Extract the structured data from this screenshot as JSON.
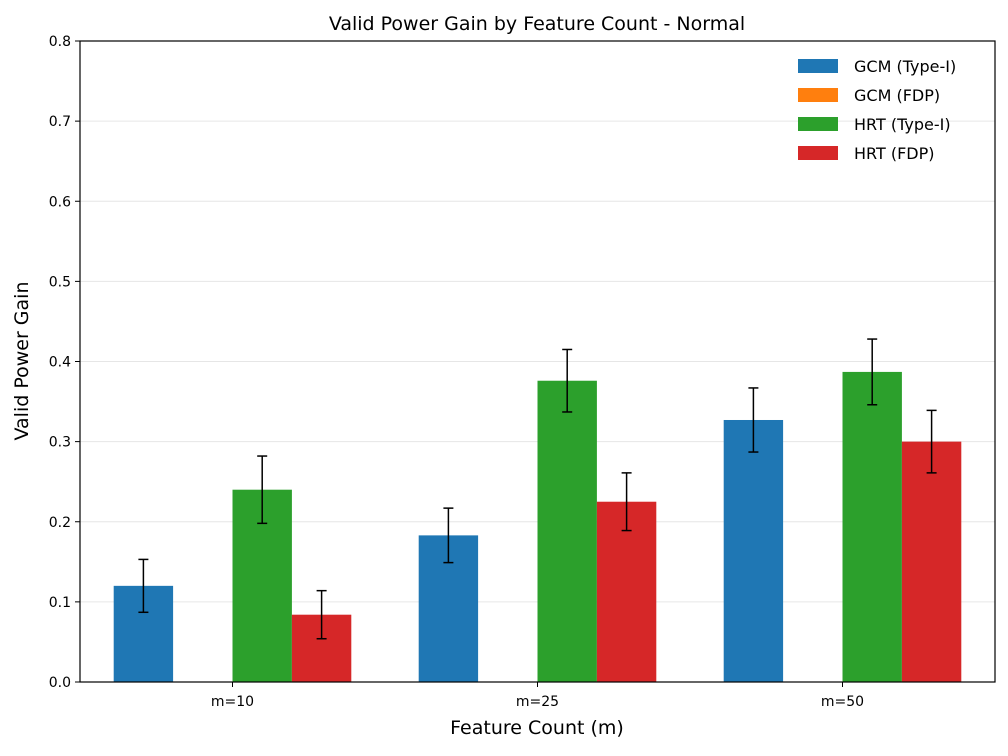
{
  "chart_data": {
    "type": "bar",
    "title": "Valid Power Gain by Feature Count - Normal",
    "xlabel": "Feature Count (m)",
    "ylabel": "Valid Power Gain",
    "ylim": [
      0,
      0.8
    ],
    "yticks": [
      "0.0",
      "0.1",
      "0.2",
      "0.3",
      "0.4",
      "0.5",
      "0.6",
      "0.7",
      "0.8"
    ],
    "grid": "horizontal",
    "legend_position": "top-right",
    "categories": [
      "m=10",
      "m=25",
      "m=50"
    ],
    "series": [
      {
        "name": "GCM (Type-I)",
        "color": "#1f77b4",
        "values": [
          0.12,
          0.183,
          0.327
        ],
        "errors": [
          0.033,
          0.034,
          0.04
        ]
      },
      {
        "name": "GCM (FDP)",
        "color": "#ff7f0e",
        "values": [
          0.0,
          0.0,
          0.0
        ],
        "errors": [
          0,
          0,
          0
        ]
      },
      {
        "name": "HRT (Type-I)",
        "color": "#2ca02c",
        "values": [
          0.24,
          0.376,
          0.387
        ],
        "errors": [
          0.042,
          0.039,
          0.041
        ]
      },
      {
        "name": "HRT (FDP)",
        "color": "#d62728",
        "values": [
          0.084,
          0.225,
          0.3
        ],
        "errors": [
          0.03,
          0.036,
          0.039
        ]
      }
    ]
  }
}
